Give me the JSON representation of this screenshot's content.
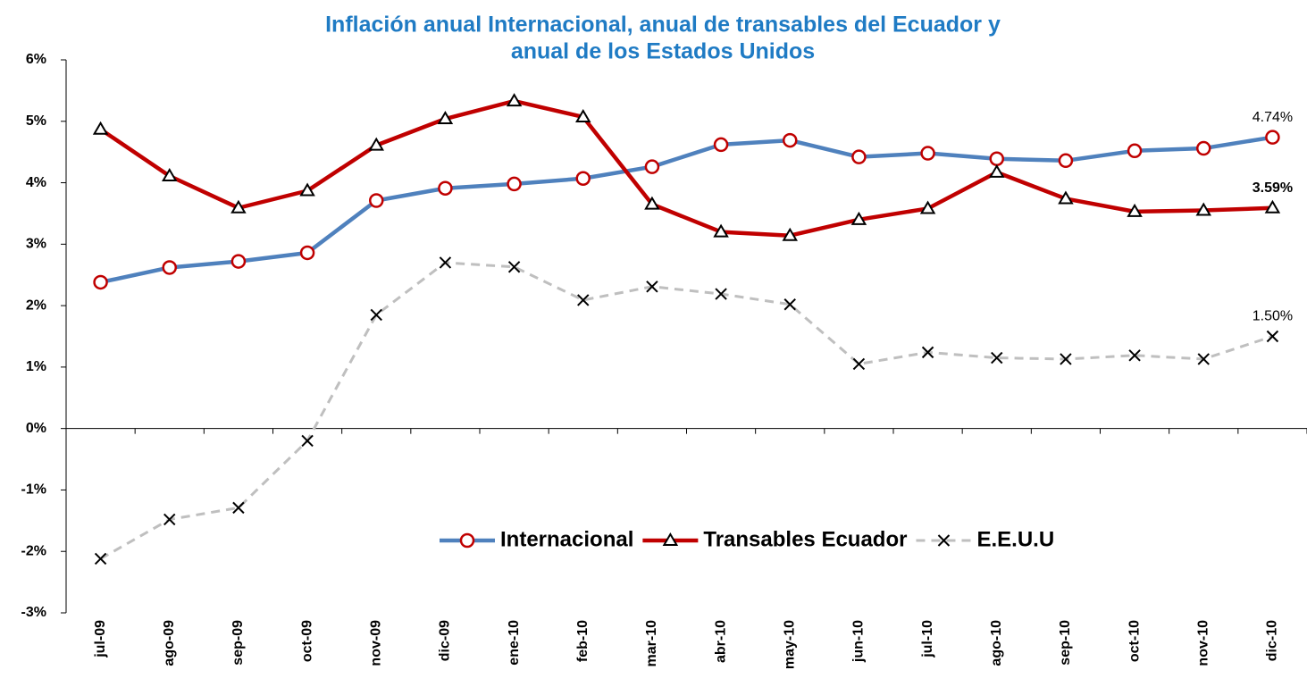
{
  "chart_data": {
    "type": "line",
    "title": [
      "Inflación anual Internacional, anual de transables del Ecuador  y",
      "anual de los Estados Unidos"
    ],
    "categories": [
      "jul-09",
      "ago-09",
      "sep-09",
      "oct-09",
      "nov-09",
      "dic-09",
      "ene-10",
      "feb-10",
      "mar-10",
      "abr-10",
      "may-10",
      "jun-10",
      "jul-10",
      "ago-10",
      "sep-10",
      "oct-10",
      "nov-10",
      "dic-10"
    ],
    "series": [
      {
        "name": "Internacional",
        "color": "#4f81bd",
        "marker": "circle",
        "marker_color": "#c00000",
        "dash": false,
        "values": [
          2.38,
          2.62,
          2.72,
          2.86,
          3.71,
          3.91,
          3.98,
          4.07,
          4.26,
          4.62,
          4.69,
          4.42,
          4.48,
          4.39,
          4.36,
          4.52,
          4.56,
          4.74
        ],
        "value_labels": [
          null,
          null,
          null,
          null,
          null,
          null,
          null,
          null,
          null,
          null,
          null,
          null,
          null,
          null,
          null,
          null,
          null,
          "4.74%"
        ]
      },
      {
        "name": "Transables Ecuador",
        "color": "#c00000",
        "marker": "triangle",
        "marker_color": "#000000",
        "dash": false,
        "values": [
          4.87,
          4.11,
          3.59,
          3.87,
          4.61,
          5.04,
          5.33,
          5.07,
          3.65,
          3.2,
          3.14,
          3.4,
          3.58,
          4.17,
          3.74,
          3.53,
          3.55,
          3.59
        ],
        "value_labels": [
          null,
          null,
          null,
          null,
          null,
          null,
          null,
          null,
          null,
          null,
          null,
          null,
          null,
          null,
          null,
          null,
          null,
          "3.59%"
        ]
      },
      {
        "name": "E.E.U.U",
        "color": "#bfbfbf",
        "marker": "x",
        "marker_color": "#000000",
        "dash": true,
        "values": [
          -2.12,
          -1.48,
          -1.29,
          -0.2,
          1.85,
          2.7,
          2.63,
          2.09,
          2.31,
          2.19,
          2.02,
          1.05,
          1.24,
          1.15,
          1.13,
          1.19,
          1.13,
          1.5
        ],
        "value_labels": [
          null,
          null,
          null,
          null,
          null,
          null,
          null,
          null,
          null,
          null,
          null,
          null,
          null,
          null,
          null,
          null,
          null,
          "1.50%"
        ]
      }
    ],
    "ylim": [
      -3,
      6
    ],
    "yticks": [
      {
        "value": -3,
        "label": "-3%"
      },
      {
        "value": -2,
        "label": "-2%"
      },
      {
        "value": -1,
        "label": "-1%"
      },
      {
        "value": 0,
        "label": "0%"
      },
      {
        "value": 1,
        "label": "1%"
      },
      {
        "value": 2,
        "label": "2%"
      },
      {
        "value": 3,
        "label": "3%"
      },
      {
        "value": 4,
        "label": "4%"
      },
      {
        "value": 5,
        "label": "5%"
      },
      {
        "value": 6,
        "label": "6%"
      }
    ],
    "grid": false
  }
}
